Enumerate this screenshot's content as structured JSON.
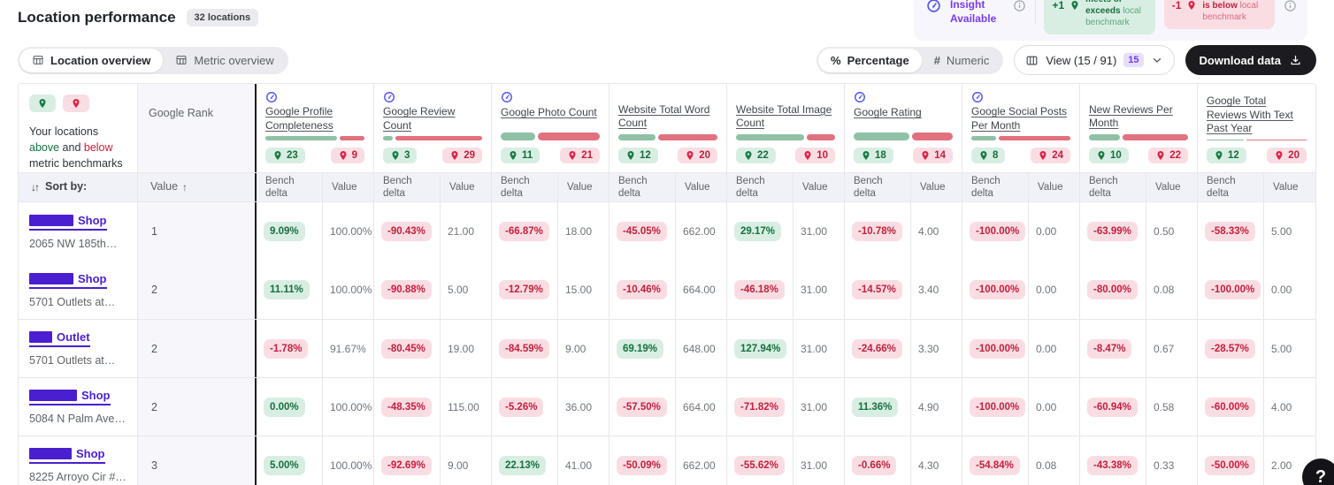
{
  "page": {
    "title": "Location performance",
    "locations_badge": "32 locations"
  },
  "insight_legend": {
    "critical_label": "Critical Insight Available",
    "positive": {
      "sign": "+1",
      "emph": "Value/location meets or exceeds",
      "rest": "local benchmark"
    },
    "negative": {
      "sign": "-1",
      "emph": "Value/location is below",
      "rest": "local benchmark"
    }
  },
  "tabs": {
    "location_overview": "Location overview",
    "metric_overview": "Metric overview"
  },
  "toolbar": {
    "percentage": "Percentage",
    "numeric": "Numeric",
    "view": "View (15 / 91)",
    "view_count": "15",
    "download": "Download data"
  },
  "table": {
    "legend_cell": {
      "prefix": "Your locations",
      "above": "above",
      "mid": "and",
      "below": "below",
      "suffix": "metric benchmarks"
    },
    "sort_by": "Sort by:",
    "rank_header": "Google Rank",
    "rank_sort": "Value",
    "bench_delta": "Bench delta",
    "value": "Value",
    "columns": [
      {
        "name": "Google Profile Completeness",
        "ai": true,
        "above": 23,
        "below": 9
      },
      {
        "name": "Google Review Count",
        "ai": true,
        "above": 3,
        "below": 29
      },
      {
        "name": "Google Photo Count",
        "ai": true,
        "above": 11,
        "below": 21
      },
      {
        "name": "Website Total Word Count",
        "ai": false,
        "above": 12,
        "below": 20
      },
      {
        "name": "Website Total Image Count",
        "ai": false,
        "above": 22,
        "below": 10
      },
      {
        "name": "Google Rating",
        "ai": true,
        "above": 18,
        "below": 14
      },
      {
        "name": "Google Social Posts Per Month",
        "ai": true,
        "above": 8,
        "below": 24
      },
      {
        "name": "New Reviews Per Month",
        "ai": false,
        "above": 10,
        "below": 22
      },
      {
        "name": "Google Total Reviews With Text Past Year",
        "ai": false,
        "above": 12,
        "below": 20
      }
    ],
    "rows": [
      {
        "brand_link": "Shop",
        "brand_box_w": 50,
        "address": "2065 NW 185th…",
        "rank": "1",
        "no_divider": false,
        "cells": [
          {
            "delta": "9.09%",
            "positive": true,
            "value": "100.00%"
          },
          {
            "delta": "-90.43%",
            "positive": false,
            "value": "21.00"
          },
          {
            "delta": "-66.87%",
            "positive": false,
            "value": "18.00"
          },
          {
            "delta": "-45.05%",
            "positive": false,
            "value": "662.00"
          },
          {
            "delta": "29.17%",
            "positive": true,
            "value": "31.00"
          },
          {
            "delta": "-10.78%",
            "positive": false,
            "value": "4.00"
          },
          {
            "delta": "-100.00%",
            "positive": false,
            "value": "0.00"
          },
          {
            "delta": "-63.99%",
            "positive": false,
            "value": "0.50"
          },
          {
            "delta": "-58.33%",
            "positive": false,
            "value": "5.00"
          }
        ]
      },
      {
        "brand_link": "Shop",
        "brand_box_w": 50,
        "address": "5701 Outlets at…",
        "rank": "2",
        "no_divider": true,
        "cells": [
          {
            "delta": "11.11%",
            "positive": true,
            "value": "100.00%"
          },
          {
            "delta": "-90.88%",
            "positive": false,
            "value": "5.00"
          },
          {
            "delta": "-12.79%",
            "positive": false,
            "value": "15.00"
          },
          {
            "delta": "-10.46%",
            "positive": false,
            "value": "664.00"
          },
          {
            "delta": "-46.18%",
            "positive": false,
            "value": "31.00"
          },
          {
            "delta": "-14.57%",
            "positive": false,
            "value": "3.40"
          },
          {
            "delta": "-100.00%",
            "positive": false,
            "value": "0.00"
          },
          {
            "delta": "-80.00%",
            "positive": false,
            "value": "0.08"
          },
          {
            "delta": "-100.00%",
            "positive": false,
            "value": "0.00"
          }
        ]
      },
      {
        "brand_link": "Outlet",
        "brand_box_w": 26,
        "address": "5701 Outlets at…",
        "rank": "2",
        "no_divider": false,
        "cells": [
          {
            "delta": "-1.78%",
            "positive": false,
            "value": "91.67%"
          },
          {
            "delta": "-80.45%",
            "positive": false,
            "value": "19.00"
          },
          {
            "delta": "-84.59%",
            "positive": false,
            "value": "9.00"
          },
          {
            "delta": "69.19%",
            "positive": true,
            "value": "648.00"
          },
          {
            "delta": "127.94%",
            "positive": true,
            "value": "31.00"
          },
          {
            "delta": "-24.66%",
            "positive": false,
            "value": "3.30"
          },
          {
            "delta": "-100.00%",
            "positive": false,
            "value": "0.00"
          },
          {
            "delta": "-8.47%",
            "positive": false,
            "value": "0.67"
          },
          {
            "delta": "-28.57%",
            "positive": false,
            "value": "5.00"
          }
        ]
      },
      {
        "brand_link": "Shop",
        "brand_box_w": 54,
        "address": "5084 N Palm Ave…",
        "rank": "2",
        "no_divider": false,
        "cells": [
          {
            "delta": "0.00%",
            "positive": true,
            "value": "100.00%"
          },
          {
            "delta": "-48.35%",
            "positive": false,
            "value": "115.00"
          },
          {
            "delta": "-5.26%",
            "positive": false,
            "value": "36.00"
          },
          {
            "delta": "-57.50%",
            "positive": false,
            "value": "664.00"
          },
          {
            "delta": "-71.82%",
            "positive": false,
            "value": "31.00"
          },
          {
            "delta": "11.36%",
            "positive": true,
            "value": "4.90"
          },
          {
            "delta": "-100.00%",
            "positive": false,
            "value": "0.00"
          },
          {
            "delta": "-60.94%",
            "positive": false,
            "value": "0.58"
          },
          {
            "delta": "-60.00%",
            "positive": false,
            "value": "4.00"
          }
        ]
      },
      {
        "brand_link": "Shop",
        "brand_box_w": 48,
        "address": "8225 Arroyo Cir #…",
        "rank": "3",
        "no_divider": false,
        "cells": [
          {
            "delta": "5.00%",
            "positive": true,
            "value": "100.00%"
          },
          {
            "delta": "-92.69%",
            "positive": false,
            "value": "9.00"
          },
          {
            "delta": "22.13%",
            "positive": true,
            "value": "41.00"
          },
          {
            "delta": "-50.09%",
            "positive": false,
            "value": "662.00"
          },
          {
            "delta": "-55.62%",
            "positive": false,
            "value": "31.00"
          },
          {
            "delta": "-0.66%",
            "positive": false,
            "value": "4.30"
          },
          {
            "delta": "-54.84%",
            "positive": false,
            "value": "0.08"
          },
          {
            "delta": "-43.38%",
            "positive": false,
            "value": "0.33"
          },
          {
            "delta": "-50.00%",
            "positive": false,
            "value": "2.00"
          }
        ]
      }
    ]
  },
  "help_button": "?",
  "colors": {
    "accent_purple": "#4a1fd0",
    "insight_violet": "#7c3aed",
    "positive_green": "#156f3e",
    "positive_bg": "#d9eee3",
    "negative_red": "#c2203e",
    "negative_bg": "#fadde3",
    "bar_green": "#8fc1a6",
    "bar_red": "#e2717e"
  }
}
